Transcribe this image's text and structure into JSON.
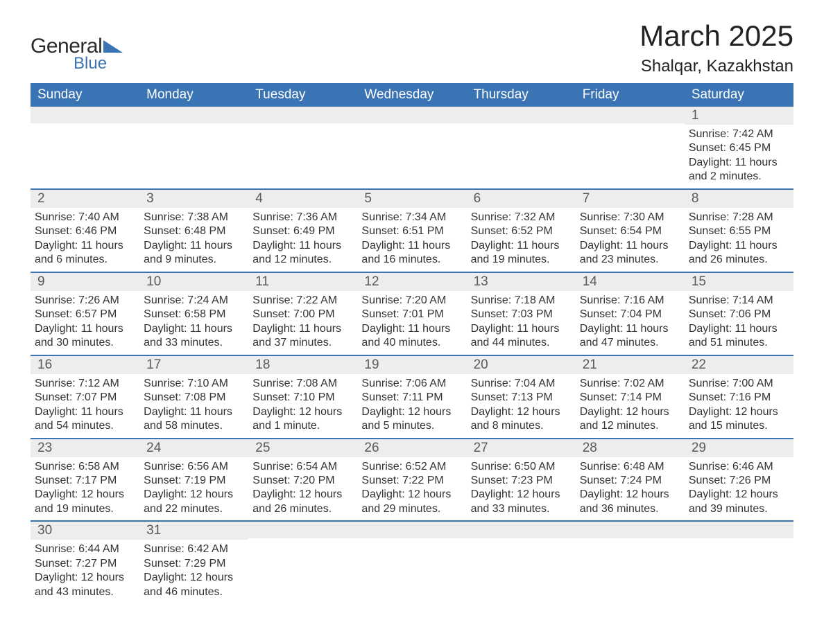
{
  "brand": {
    "line1": "General",
    "line2": "Blue",
    "text_color": "#2a2a2a",
    "blue": "#3b74b4"
  },
  "header": {
    "title": "March 2025",
    "subtitle": "Shalqar, Kazakhstan"
  },
  "colors": {
    "header_bg": "#3b74b4",
    "header_fg": "#ffffff",
    "daynum_bg": "#ededed",
    "daynum_fg": "#5a5a5a",
    "body_fg": "#333333",
    "rule": "#3b74b4",
    "page_bg": "#ffffff"
  },
  "typography": {
    "title_fontsize": 42,
    "subtitle_fontsize": 24,
    "header_cell_fontsize": 19,
    "daynum_fontsize": 19,
    "body_fontsize": 16
  },
  "labels": {
    "sunrise": "Sunrise:",
    "sunset": "Sunset:",
    "daylight": "Daylight:"
  },
  "calendar": {
    "type": "table",
    "columns": [
      "Sunday",
      "Monday",
      "Tuesday",
      "Wednesday",
      "Thursday",
      "Friday",
      "Saturday"
    ],
    "weeks": [
      [
        null,
        null,
        null,
        null,
        null,
        null,
        {
          "n": 1,
          "sunrise": "7:42 AM",
          "sunset": "6:45 PM",
          "daylight": "11 hours and 2 minutes."
        }
      ],
      [
        {
          "n": 2,
          "sunrise": "7:40 AM",
          "sunset": "6:46 PM",
          "daylight": "11 hours and 6 minutes."
        },
        {
          "n": 3,
          "sunrise": "7:38 AM",
          "sunset": "6:48 PM",
          "daylight": "11 hours and 9 minutes."
        },
        {
          "n": 4,
          "sunrise": "7:36 AM",
          "sunset": "6:49 PM",
          "daylight": "11 hours and 12 minutes."
        },
        {
          "n": 5,
          "sunrise": "7:34 AM",
          "sunset": "6:51 PM",
          "daylight": "11 hours and 16 minutes."
        },
        {
          "n": 6,
          "sunrise": "7:32 AM",
          "sunset": "6:52 PM",
          "daylight": "11 hours and 19 minutes."
        },
        {
          "n": 7,
          "sunrise": "7:30 AM",
          "sunset": "6:54 PM",
          "daylight": "11 hours and 23 minutes."
        },
        {
          "n": 8,
          "sunrise": "7:28 AM",
          "sunset": "6:55 PM",
          "daylight": "11 hours and 26 minutes."
        }
      ],
      [
        {
          "n": 9,
          "sunrise": "7:26 AM",
          "sunset": "6:57 PM",
          "daylight": "11 hours and 30 minutes."
        },
        {
          "n": 10,
          "sunrise": "7:24 AM",
          "sunset": "6:58 PM",
          "daylight": "11 hours and 33 minutes."
        },
        {
          "n": 11,
          "sunrise": "7:22 AM",
          "sunset": "7:00 PM",
          "daylight": "11 hours and 37 minutes."
        },
        {
          "n": 12,
          "sunrise": "7:20 AM",
          "sunset": "7:01 PM",
          "daylight": "11 hours and 40 minutes."
        },
        {
          "n": 13,
          "sunrise": "7:18 AM",
          "sunset": "7:03 PM",
          "daylight": "11 hours and 44 minutes."
        },
        {
          "n": 14,
          "sunrise": "7:16 AM",
          "sunset": "7:04 PM",
          "daylight": "11 hours and 47 minutes."
        },
        {
          "n": 15,
          "sunrise": "7:14 AM",
          "sunset": "7:06 PM",
          "daylight": "11 hours and 51 minutes."
        }
      ],
      [
        {
          "n": 16,
          "sunrise": "7:12 AM",
          "sunset": "7:07 PM",
          "daylight": "11 hours and 54 minutes."
        },
        {
          "n": 17,
          "sunrise": "7:10 AM",
          "sunset": "7:08 PM",
          "daylight": "11 hours and 58 minutes."
        },
        {
          "n": 18,
          "sunrise": "7:08 AM",
          "sunset": "7:10 PM",
          "daylight": "12 hours and 1 minute."
        },
        {
          "n": 19,
          "sunrise": "7:06 AM",
          "sunset": "7:11 PM",
          "daylight": "12 hours and 5 minutes."
        },
        {
          "n": 20,
          "sunrise": "7:04 AM",
          "sunset": "7:13 PM",
          "daylight": "12 hours and 8 minutes."
        },
        {
          "n": 21,
          "sunrise": "7:02 AM",
          "sunset": "7:14 PM",
          "daylight": "12 hours and 12 minutes."
        },
        {
          "n": 22,
          "sunrise": "7:00 AM",
          "sunset": "7:16 PM",
          "daylight": "12 hours and 15 minutes."
        }
      ],
      [
        {
          "n": 23,
          "sunrise": "6:58 AM",
          "sunset": "7:17 PM",
          "daylight": "12 hours and 19 minutes."
        },
        {
          "n": 24,
          "sunrise": "6:56 AM",
          "sunset": "7:19 PM",
          "daylight": "12 hours and 22 minutes."
        },
        {
          "n": 25,
          "sunrise": "6:54 AM",
          "sunset": "7:20 PM",
          "daylight": "12 hours and 26 minutes."
        },
        {
          "n": 26,
          "sunrise": "6:52 AM",
          "sunset": "7:22 PM",
          "daylight": "12 hours and 29 minutes."
        },
        {
          "n": 27,
          "sunrise": "6:50 AM",
          "sunset": "7:23 PM",
          "daylight": "12 hours and 33 minutes."
        },
        {
          "n": 28,
          "sunrise": "6:48 AM",
          "sunset": "7:24 PM",
          "daylight": "12 hours and 36 minutes."
        },
        {
          "n": 29,
          "sunrise": "6:46 AM",
          "sunset": "7:26 PM",
          "daylight": "12 hours and 39 minutes."
        }
      ],
      [
        {
          "n": 30,
          "sunrise": "6:44 AM",
          "sunset": "7:27 PM",
          "daylight": "12 hours and 43 minutes."
        },
        {
          "n": 31,
          "sunrise": "6:42 AM",
          "sunset": "7:29 PM",
          "daylight": "12 hours and 46 minutes."
        },
        null,
        null,
        null,
        null,
        null
      ]
    ]
  }
}
